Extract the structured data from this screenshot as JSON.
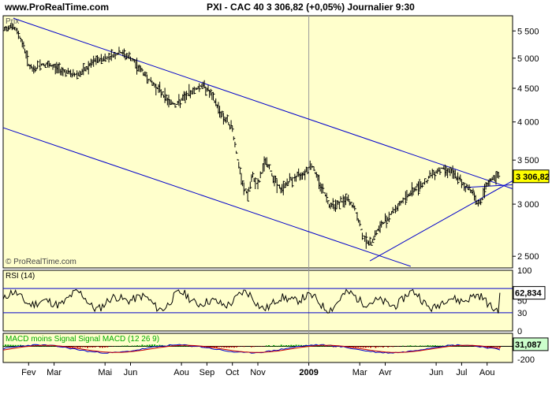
{
  "header": {
    "site": "www.ProRealTime.com",
    "title": "PXI - CAC 40    3 306,82 (+0,05%)    Journalier  9:30"
  },
  "colors": {
    "panel_bg": "#ffffcc",
    "price": "#000000",
    "trendline": "#0000cc",
    "price_tag_bg": "#ffff00",
    "macd_line": "#0000cc",
    "signal_line": "#cc0000",
    "histogram": "#00aa00"
  },
  "chart_data": [
    {
      "type": "line",
      "title": "Prix",
      "watermark": "© ProRealTime.com",
      "series_style": "bar (OHLC)",
      "scale": "log",
      "ylim": [
        2400,
        5800
      ],
      "y_ticks": [
        "5 500",
        "5 000",
        "4 500",
        "4 000",
        "3 500",
        "3 000",
        "2 500"
      ],
      "y_tick_values": [
        5500,
        5000,
        4500,
        4000,
        3500,
        3000,
        2500
      ],
      "last_value_label": "3 306,82",
      "last_value": 3306.82,
      "x_labels": [
        "Fev",
        "Mar",
        "Mai",
        "Jun",
        "Aou",
        "Sep",
        "Oct",
        "Nov",
        "2009",
        "Mar",
        "Avr",
        "Jun",
        "Jul",
        "Aou"
      ],
      "x_label_months": [
        1,
        2,
        4,
        5,
        7,
        8,
        9,
        10,
        12,
        14,
        15,
        17,
        18,
        19
      ],
      "x_range_months": [
        0,
        20
      ],
      "points": [
        [
          0.0,
          5500
        ],
        [
          0.3,
          5620
        ],
        [
          0.6,
          5450
        ],
        [
          0.85,
          5150
        ],
        [
          1.0,
          4900
        ],
        [
          1.15,
          4780
        ],
        [
          1.5,
          4900
        ],
        [
          2.0,
          4850
        ],
        [
          2.3,
          4800
        ],
        [
          2.7,
          4720
        ],
        [
          3.1,
          4750
        ],
        [
          3.6,
          4950
        ],
        [
          4.0,
          5000
        ],
        [
          4.3,
          5050
        ],
        [
          4.6,
          5100
        ],
        [
          5.0,
          5000
        ],
        [
          5.4,
          4800
        ],
        [
          5.8,
          4600
        ],
        [
          6.2,
          4450
        ],
        [
          6.5,
          4300
        ],
        [
          6.8,
          4250
        ],
        [
          7.1,
          4350
        ],
        [
          7.4,
          4450
        ],
        [
          7.8,
          4550
        ],
        [
          8.0,
          4500
        ],
        [
          8.3,
          4300
        ],
        [
          8.6,
          4100
        ],
        [
          9.0,
          3900
        ],
        [
          9.2,
          3500
        ],
        [
          9.4,
          3200
        ],
        [
          9.6,
          3100
        ],
        [
          9.8,
          3300
        ],
        [
          10.0,
          3200
        ],
        [
          10.3,
          3500
        ],
        [
          10.6,
          3300
        ],
        [
          10.9,
          3150
        ],
        [
          11.2,
          3250
        ],
        [
          11.5,
          3300
        ],
        [
          11.8,
          3350
        ],
        [
          12.1,
          3450
        ],
        [
          12.4,
          3250
        ],
        [
          12.8,
          3000
        ],
        [
          13.1,
          3000
        ],
        [
          13.5,
          3050
        ],
        [
          13.8,
          2950
        ],
        [
          14.1,
          2700
        ],
        [
          14.4,
          2600
        ],
        [
          14.6,
          2700
        ],
        [
          14.9,
          2800
        ],
        [
          15.2,
          2900
        ],
        [
          15.5,
          2980
        ],
        [
          15.9,
          3100
        ],
        [
          16.3,
          3200
        ],
        [
          16.6,
          3250
        ],
        [
          16.9,
          3350
        ],
        [
          17.2,
          3400
        ],
        [
          17.5,
          3380
        ],
        [
          17.8,
          3300
        ],
        [
          18.1,
          3200
        ],
        [
          18.4,
          3150
        ],
        [
          18.55,
          3050
        ],
        [
          18.7,
          3000
        ],
        [
          18.85,
          3100
        ],
        [
          19.0,
          3200
        ],
        [
          19.2,
          3280
        ],
        [
          19.5,
          3306.82
        ]
      ]
    },
    {
      "type": "line",
      "title": "RSI (14)",
      "ylim": [
        0,
        100
      ],
      "y_ticks": [
        "100",
        "50",
        "30",
        "0"
      ],
      "y_tick_values": [
        100,
        50,
        30,
        0
      ],
      "reference_lines": [
        70,
        30
      ],
      "last_value_label": "62,834",
      "last_value": 62.834
    },
    {
      "type": "line",
      "title": "MACD moins Signal Signal MACD (12 26 9)",
      "ylim": [
        -250,
        200
      ],
      "y_ticks": [
        "0",
        "-200"
      ],
      "y_tick_values": [
        0,
        -200
      ],
      "last_value_label": "31,087",
      "last_value": 31.087
    }
  ]
}
